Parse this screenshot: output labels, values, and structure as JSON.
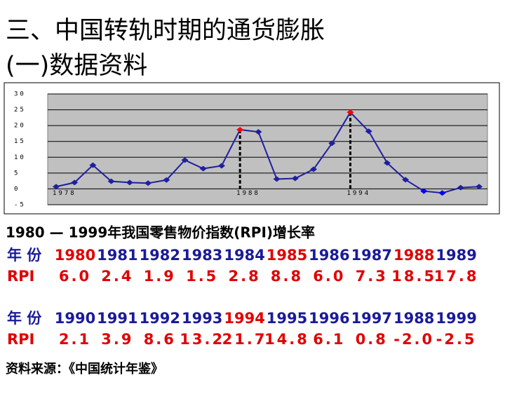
{
  "title": [
    "三、中国转轨时期的通货膨胀",
    "(一)数据资料"
  ],
  "chart_data": {
    "type": "line",
    "categories": [
      "1978",
      null,
      null,
      null,
      null,
      null,
      null,
      null,
      null,
      null,
      "1988",
      null,
      null,
      null,
      null,
      null,
      "1994",
      null,
      null,
      null,
      null,
      null,
      null,
      null
    ],
    "series": [
      {
        "color": "#1f1fa0",
        "values": [
          0.7,
          2.0,
          7.5,
          2.4,
          2.0,
          1.8,
          2.8,
          9.1,
          6.4,
          7.3,
          18.7,
          18.0,
          3.1,
          3.3,
          6.2,
          14.4,
          24.2,
          18.2,
          8.2,
          2.9,
          -0.7,
          -1.3,
          0.4,
          0.7
        ],
        "marker_colors": [
          "#1f1fa0",
          "#1f1fa0",
          "#1f1fa0",
          "#1f1fa0",
          "#1f1fa0",
          "#1f1fa0",
          "#1f1fa0",
          "#1f1fa0",
          "#1f1fa0",
          "#1f1fa0",
          "#ff0000",
          "#1f1fa0",
          "#1f1fa0",
          "#1f1fa0",
          "#1f1fa0",
          "#1f1fa0",
          "#ff0000",
          "#1f1fa0",
          "#1f1fa0",
          "#1f1fa0",
          "#0000ff",
          "#0000ff",
          "#1f1fa0",
          "#1f1fa0"
        ]
      }
    ],
    "ylim": [
      -5,
      30
    ],
    "yticks": [
      30,
      25,
      20,
      15,
      10,
      5,
      0,
      -5
    ],
    "grid": true
  },
  "table": {
    "caption": "1980 — 1999年我国零售物价指数(RPI)增长率",
    "rows": [
      {
        "label": "年 份",
        "label_color": "#1a1a9a",
        "cells": [
          "1980",
          "1981",
          "1982",
          "1983",
          "1984",
          "1985",
          "1986",
          "1987",
          "1988",
          "1989"
        ],
        "colors": [
          "#e00000",
          "#1a1a9a",
          "#1a1a9a",
          "#1a1a9a",
          "#1a1a9a",
          "#e00000",
          "#1a1a9a",
          "#1a1a9a",
          "#e00000",
          "#1a1a9a"
        ]
      },
      {
        "label": "RPI",
        "label_color": "#e00000",
        "cells": [
          "6.0",
          "2.4",
          "1.9",
          "1.5",
          "2.8",
          "8.8",
          "6.0",
          "7.3",
          "18.5",
          "17.8"
        ],
        "colors": [
          "#e00000",
          "#e00000",
          "#e00000",
          "#e00000",
          "#e00000",
          "#e00000",
          "#e00000",
          "#e00000",
          "#e00000",
          "#e00000"
        ]
      },
      {
        "label": "年 份",
        "label_color": "#1a1a9a",
        "cells": [
          "1990",
          "1991",
          "1992",
          "1993",
          "1994",
          "1995",
          "1996",
          "1997",
          "1988",
          "1999"
        ],
        "colors": [
          "#1a1a9a",
          "#1a1a9a",
          "#1a1a9a",
          "#1a1a9a",
          "#e00000",
          "#1a1a9a",
          "#1a1a9a",
          "#1a1a9a",
          "#1a1a9a",
          "#1a1a9a"
        ]
      },
      {
        "label": "RPI",
        "label_color": "#e00000",
        "cells": [
          "2.1",
          "3.9",
          "8.6",
          "13.2",
          "21.7",
          "14.8",
          "6.1",
          "0.8",
          "-2.0",
          "-2.5"
        ],
        "colors": [
          "#e00000",
          "#e00000",
          "#e00000",
          "#e00000",
          "#e00000",
          "#e00000",
          "#e00000",
          "#e00000",
          "#e00000",
          "#e00000"
        ]
      }
    ]
  },
  "source": "资料来源：《中国统计年鉴》"
}
